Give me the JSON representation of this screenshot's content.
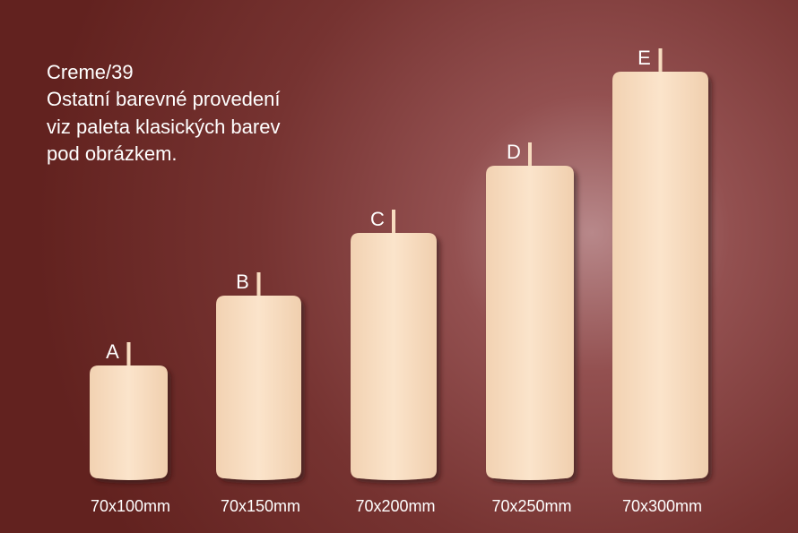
{
  "description": [
    "Creme/39",
    "Ostatní barevné provedení",
    "viz paleta klasických barev",
    "pod obrázkem."
  ],
  "candles": [
    {
      "letter": "A",
      "size": "70x100mm"
    },
    {
      "letter": "B",
      "size": "70x150mm"
    },
    {
      "letter": "C",
      "size": "70x200mm"
    },
    {
      "letter": "D",
      "size": "70x250mm"
    },
    {
      "letter": "E",
      "size": "70x300mm"
    }
  ]
}
